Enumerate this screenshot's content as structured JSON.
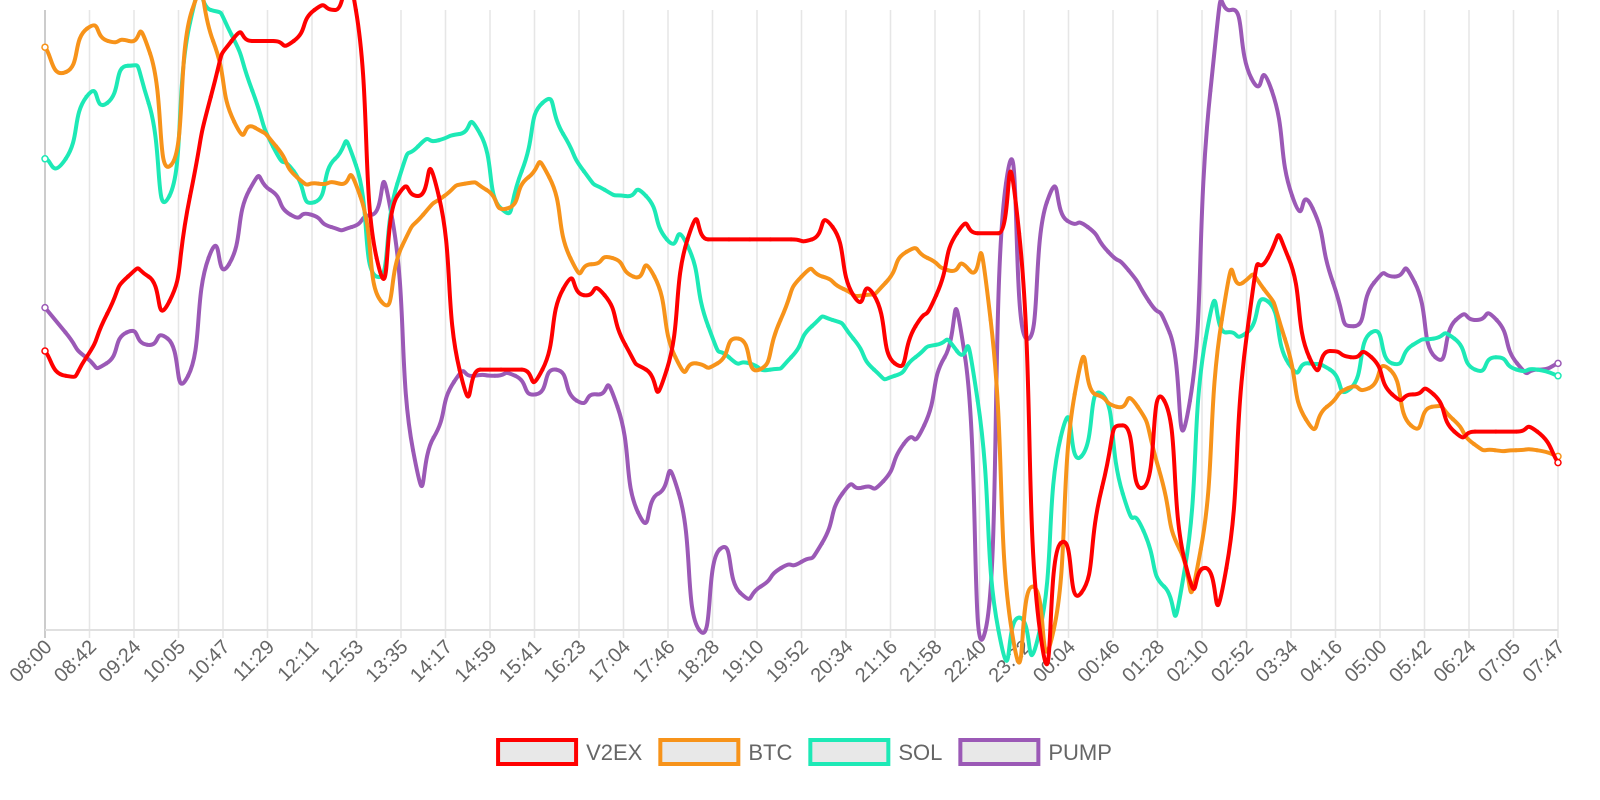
{
  "chart_data": {
    "type": "line",
    "title": "",
    "xlabel": "",
    "ylabel": "",
    "ylim": [
      0,
      100
    ],
    "grid": "vertical",
    "legend_position": "bottom",
    "normalized": true,
    "x_tick_labels": [
      "08:00",
      "08:42",
      "09:24",
      "10:05",
      "10:47",
      "11:29",
      "12:11",
      "12:53",
      "13:35",
      "14:17",
      "14:59",
      "15:41",
      "16:23",
      "17:04",
      "17:46",
      "18:28",
      "19:10",
      "19:52",
      "20:34",
      "21:16",
      "21:58",
      "22:40",
      "23:22",
      "00:04",
      "00:46",
      "01:28",
      "02:10",
      "02:52",
      "03:34",
      "04:16",
      "05:00",
      "05:42",
      "06:24",
      "07:05",
      "07:47"
    ],
    "series": [
      {
        "name": "V2EX",
        "color": "#ff0000",
        "values": [
          45,
          41,
          44,
          51,
          57,
          57,
          53,
          70,
          86,
          95,
          95,
          95,
          95,
          100,
          100,
          100,
          60,
          70,
          70,
          70,
          42,
          42,
          42,
          42,
          42,
          55,
          54,
          54,
          46,
          42,
          42,
          63,
          63,
          63,
          63,
          63,
          63,
          63,
          65,
          54,
          54,
          43,
          49,
          54,
          64,
          64,
          64,
          64,
          0,
          14,
          6,
          23,
          33,
          23,
          37,
          11,
          10,
          10,
          48,
          60,
          60,
          44,
          45,
          44,
          44,
          38,
          38,
          38,
          32,
          32,
          32,
          32,
          32,
          27
        ]
      },
      {
        "name: ": "BTC",
        "name": "BTC",
        "color": "#f7931a",
        "values": [
          94,
          90,
          97,
          95,
          95,
          93,
          75,
          100,
          95,
          82,
          81,
          78,
          73,
          72,
          72,
          70,
          53,
          62,
          67,
          70,
          72,
          71,
          68,
          73,
          73,
          60,
          59,
          60,
          57,
          57,
          44,
          43,
          43,
          47,
          42,
          50,
          57,
          57,
          55,
          54,
          56,
          61,
          60,
          58,
          58,
          50,
          0,
          7,
          0,
          38,
          38,
          36,
          36,
          26,
          13,
          13,
          50,
          56,
          55,
          47,
          34,
          36,
          39,
          39,
          42,
          33,
          36,
          34,
          30,
          29,
          29,
          29,
          28
        ]
      },
      {
        "name": "SOL",
        "color": "#1de9b6",
        "values": [
          76,
          76,
          86,
          85,
          91,
          85,
          70,
          98,
          100,
          96,
          87,
          78,
          74,
          69,
          76,
          75,
          57,
          72,
          78,
          79,
          80,
          80,
          68,
          74,
          85,
          80,
          74,
          71,
          70,
          70,
          63,
          62,
          49,
          44,
          43,
          42,
          44,
          49,
          50,
          47,
          42,
          41,
          44,
          46,
          45,
          37,
          0,
          2,
          0,
          31,
          28,
          38,
          22,
          16,
          7,
          10,
          47,
          48,
          48,
          53,
          43,
          43,
          42,
          39,
          48,
          43,
          46,
          47,
          47,
          42,
          44,
          42,
          42,
          41
        ]
      },
      {
        "name": "PUMP",
        "color": "#9b59b6",
        "values": [
          52,
          48,
          44,
          43,
          48,
          46,
          47,
          41,
          60,
          59,
          71,
          71,
          67,
          67,
          65,
          65,
          67,
          66,
          29,
          31,
          40,
          41,
          41,
          41,
          38,
          42,
          37,
          38,
          36,
          19,
          22,
          22,
          0,
          13,
          6,
          7,
          10,
          11,
          14,
          22,
          23,
          24,
          30,
          33,
          44,
          44,
          0,
          72,
          47,
          69,
          66,
          65,
          61,
          58,
          53,
          48,
          37,
          87,
          100,
          89,
          87,
          70,
          68,
          56,
          49,
          56,
          57,
          56,
          44,
          50,
          50,
          50,
          43,
          42,
          43
        ]
      }
    ],
    "legend": [
      "V2EX",
      "BTC",
      "SOL",
      "PUMP"
    ]
  }
}
